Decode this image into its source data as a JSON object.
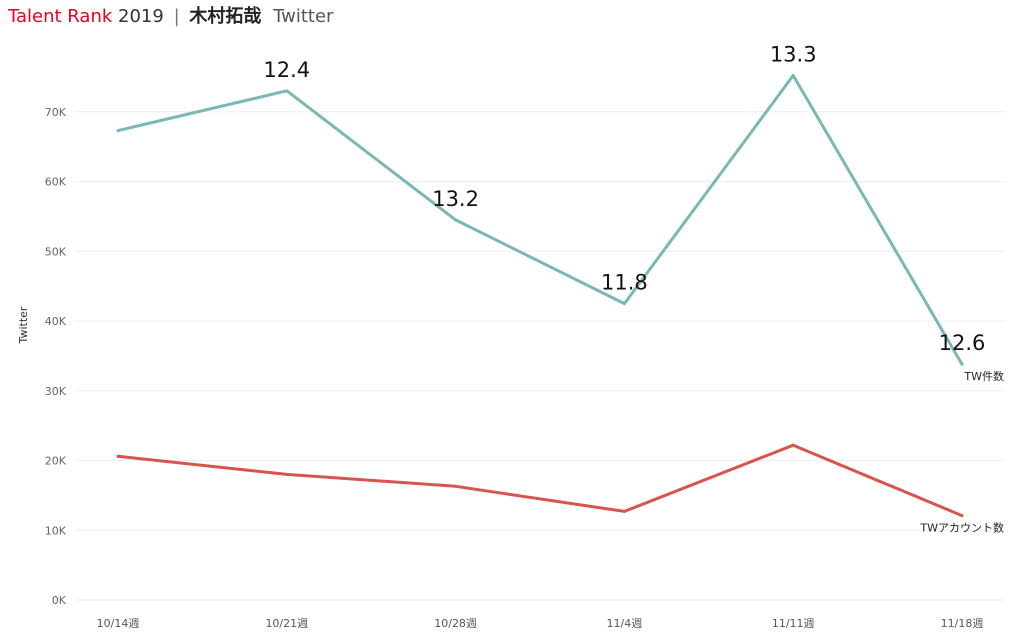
{
  "header": {
    "brand": "Talent Rank",
    "year": "2019",
    "separator": "|",
    "talent_name": "木村拓哉",
    "subtitle": "Twitter"
  },
  "colors": {
    "brand": "#e8001c",
    "tw_count_line": "#7ab8b3",
    "tw_account_line": "#d9534f",
    "grid": "#eeeeee"
  },
  "chart_data": {
    "type": "line",
    "ylabel": "Twitter",
    "xlabel": "",
    "ylim": [
      0,
      80000
    ],
    "grid": true,
    "categories": [
      "10/14週",
      "10/21週",
      "10/28週",
      "11/4週",
      "11/11週",
      "11/18週"
    ],
    "yticks": [
      0,
      10000,
      20000,
      30000,
      40000,
      50000,
      60000,
      70000
    ],
    "ytick_labels": [
      "0K",
      "10K",
      "20K",
      "30K",
      "40K",
      "50K",
      "60K",
      "70K"
    ],
    "series": [
      {
        "name": "TW件数",
        "color": "#7ab8b3",
        "values": [
          67300,
          73000,
          54500,
          42500,
          75200,
          33800
        ],
        "data_labels": [
          "",
          "12.4",
          "13.2",
          "11.8",
          "13.3",
          "12.6"
        ]
      },
      {
        "name": "TWアカウント数",
        "color": "#d9534f",
        "values": [
          20600,
          18000,
          16300,
          12700,
          22200,
          12100
        ],
        "data_labels": [
          "",
          "",
          "",
          "",
          "",
          ""
        ]
      }
    ]
  }
}
